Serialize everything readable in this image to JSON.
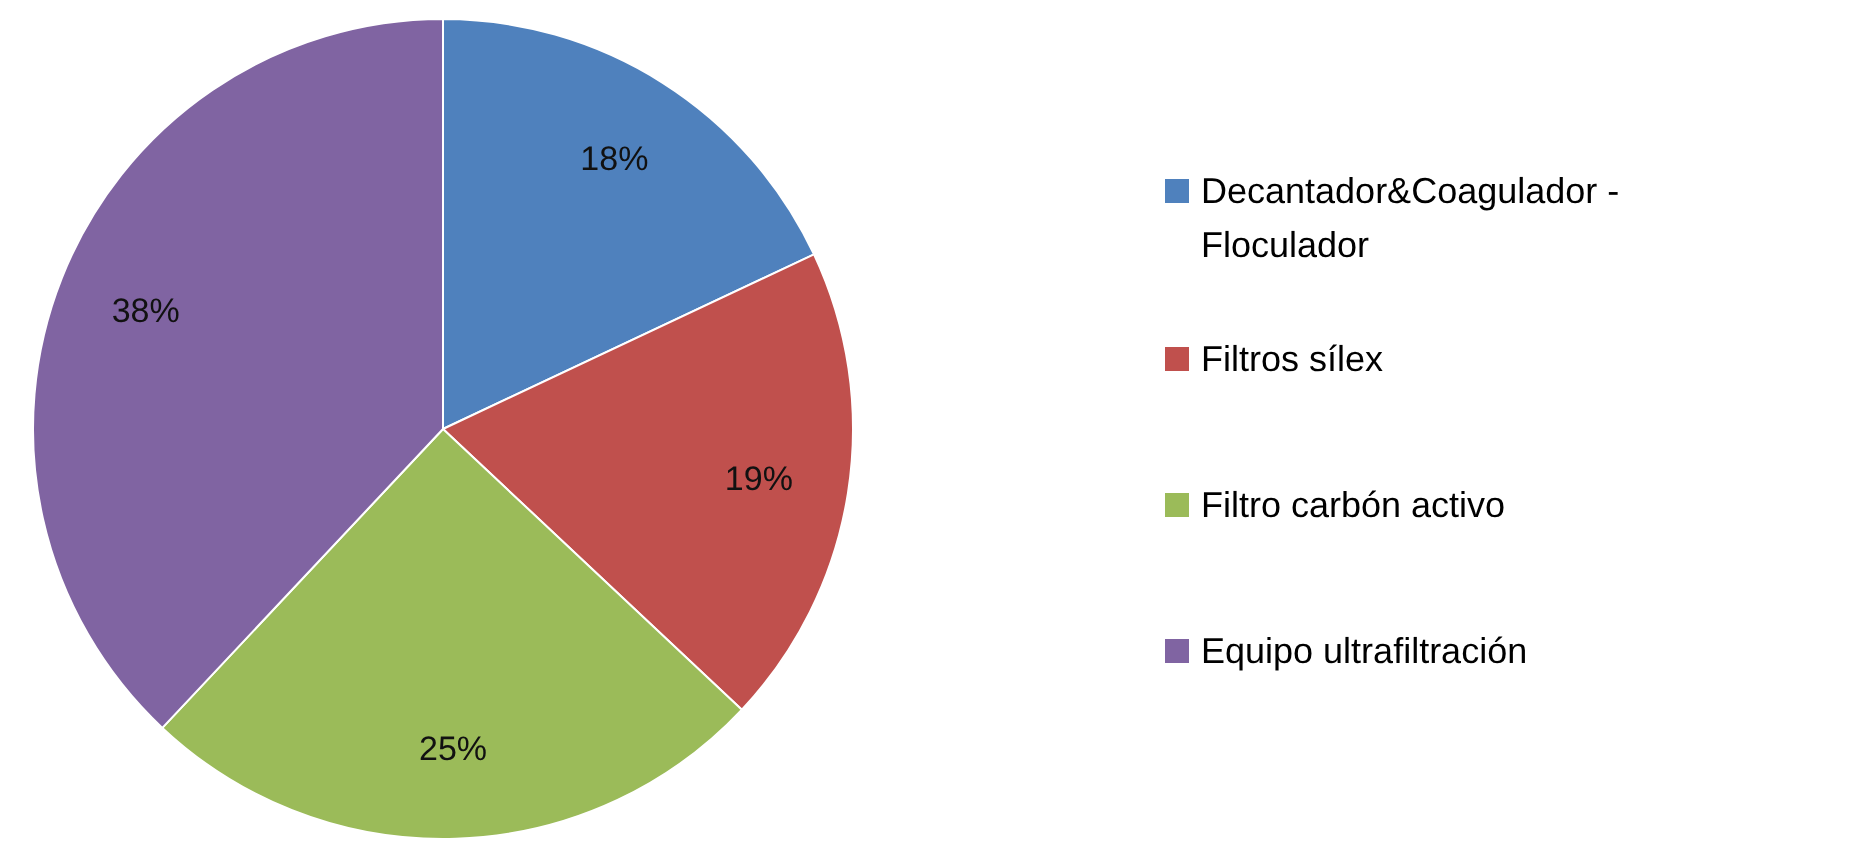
{
  "chart_data": {
    "type": "pie",
    "categories": [
      "Decantador&Coagulador - Floculador",
      "Filtros sílex",
      "Filtro carbón activo",
      "Equipo ultrafiltración"
    ],
    "values": [
      18,
      19,
      25,
      38
    ],
    "colors": [
      "#4f81bd",
      "#c0504d",
      "#9bbb59",
      "#8064a2"
    ],
    "value_labels": [
      "18%",
      "19%",
      "25%",
      "38%"
    ],
    "legend": "right"
  }
}
